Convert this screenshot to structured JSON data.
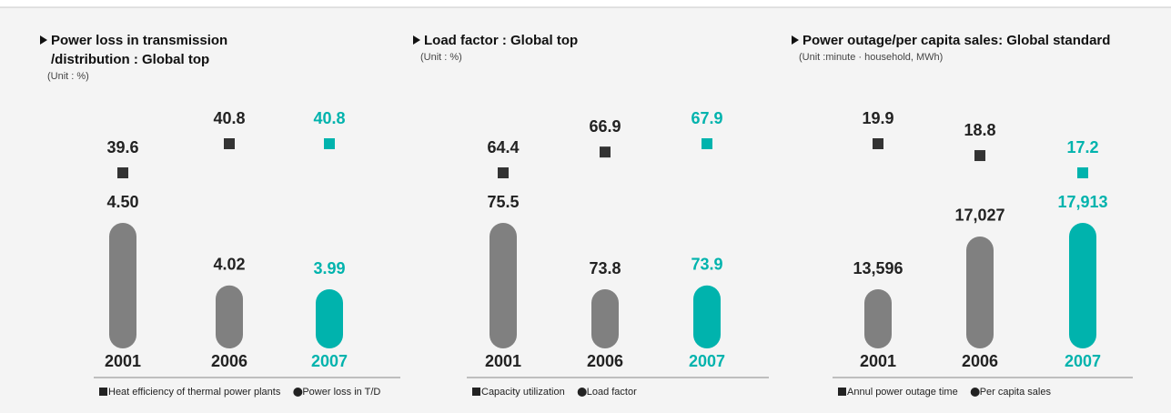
{
  "chart_data": [
    {
      "type": "bar",
      "title": [
        "Power loss in transmission",
        "/distribution : Global top"
      ],
      "subtitle": "(Unit : %)",
      "categories": [
        "2001",
        "2006",
        "2007"
      ],
      "category_colors": [
        "#222222",
        "#222222",
        "#00b3ad"
      ],
      "series": [
        {
          "name": "Heat efficiency of thermal power plants",
          "type": "scatter",
          "colors": [
            "#333333",
            "#333333",
            "#00b3ad"
          ],
          "values": [
            39.6,
            40.8,
            40.8
          ]
        },
        {
          "name": "Power loss in T/D",
          "type": "bar",
          "colors": [
            "#808080",
            "#808080",
            "#00b3ad"
          ],
          "values": [
            4.5,
            4.02,
            3.99
          ],
          "value_labels": [
            "4.50",
            "4.02",
            "3.99"
          ]
        }
      ]
    },
    {
      "type": "bar",
      "title": [
        "Load factor : Global top"
      ],
      "subtitle": "(Unit : %)",
      "categories": [
        "2001",
        "2006",
        "2007"
      ],
      "category_colors": [
        "#222222",
        "#222222",
        "#00b3ad"
      ],
      "series": [
        {
          "name": "Capacity utilization",
          "type": "scatter",
          "colors": [
            "#333333",
            "#333333",
            "#00b3ad"
          ],
          "values": [
            64.4,
            66.9,
            67.9
          ]
        },
        {
          "name": "Load factor",
          "type": "bar",
          "colors": [
            "#808080",
            "#808080",
            "#00b3ad"
          ],
          "values": [
            75.5,
            73.8,
            73.9
          ]
        }
      ]
    },
    {
      "type": "bar",
      "title": [
        "Power outage/per capita sales: Global standard"
      ],
      "subtitle": "(Unit :minute · household, MWh)",
      "categories": [
        "2001",
        "2006",
        "2007"
      ],
      "category_colors": [
        "#222222",
        "#222222",
        "#00b3ad"
      ],
      "series": [
        {
          "name": "Annul power outage time",
          "type": "scatter",
          "colors": [
            "#333333",
            "#333333",
            "#00b3ad"
          ],
          "values": [
            19.9,
            18.8,
            17.2
          ]
        },
        {
          "name": "Per capita sales",
          "type": "bar",
          "colors": [
            "#808080",
            "#808080",
            "#00b3ad"
          ],
          "values": [
            13596,
            17027,
            17913
          ],
          "value_labels": [
            "13,596",
            "17,027",
            "17,913"
          ]
        }
      ]
    }
  ]
}
